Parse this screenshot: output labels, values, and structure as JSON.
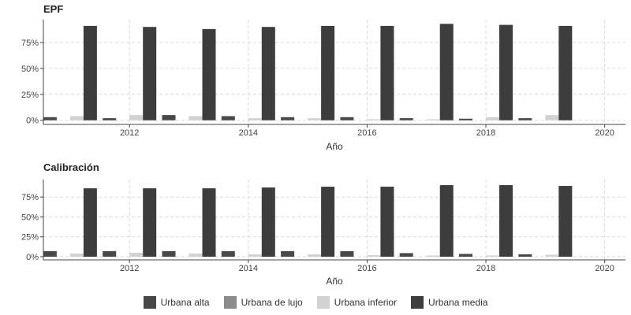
{
  "colors": {
    "Urbana alta": "#484848",
    "Urbana de lujo": "#8c8c8c",
    "Urbana inferior": "#d2d2d2",
    "Urbana media": "#3d3d3d"
  },
  "legend": {
    "items": [
      "Urbana alta",
      "Urbana de lujo",
      "Urbana inferior",
      "Urbana media"
    ],
    "placement": "bottom"
  },
  "chart_data": [
    {
      "type": "bar",
      "title": "EPF",
      "xlabel": "Año",
      "ylabel": "",
      "x": [
        2011,
        2012,
        2013,
        2014,
        2015,
        2016,
        2017,
        2018,
        2019,
        2020
      ],
      "xticks": [
        "2012",
        "2014",
        "2016",
        "2018",
        "2020"
      ],
      "xtick_values": [
        2012,
        2014,
        2016,
        2018,
        2020
      ],
      "yticks": [
        "0%",
        "25%",
        "50%",
        "75%"
      ],
      "ytick_values": [
        0,
        25,
        50,
        75
      ],
      "ylim": [
        -4,
        97
      ],
      "xlim": [
        2010.55,
        2020.35
      ],
      "grid": true,
      "series": [
        {
          "name": "Urbana alta",
          "values": [
            3,
            2,
            5,
            4,
            3,
            3,
            2,
            1.5,
            2,
            0
          ]
        },
        {
          "name": "Urbana de lujo",
          "values": [
            0,
            0,
            0,
            0,
            0,
            0,
            0,
            0,
            0,
            0
          ]
        },
        {
          "name": "Urbana inferior",
          "values": [
            4,
            5,
            4,
            2,
            2,
            1,
            1,
            3,
            5,
            0
          ]
        },
        {
          "name": "Urbana media",
          "values": [
            91,
            90,
            88,
            90,
            91,
            91,
            93,
            92,
            91,
            0
          ]
        }
      ]
    },
    {
      "type": "bar",
      "title": "Calibración",
      "xlabel": "Año",
      "ylabel": "",
      "x": [
        2011,
        2012,
        2013,
        2014,
        2015,
        2016,
        2017,
        2018,
        2019,
        2020
      ],
      "xticks": [
        "2012",
        "2014",
        "2016",
        "2018",
        "2020"
      ],
      "xtick_values": [
        2012,
        2014,
        2016,
        2018,
        2020
      ],
      "yticks": [
        "0%",
        "25%",
        "50%",
        "75%"
      ],
      "ytick_values": [
        0,
        25,
        50,
        75
      ],
      "ylim": [
        -4,
        97
      ],
      "xlim": [
        2010.55,
        2020.35
      ],
      "grid": true,
      "series": [
        {
          "name": "Urbana alta",
          "values": [
            7,
            7,
            7,
            7,
            7,
            7,
            4.5,
            3.5,
            3,
            0
          ]
        },
        {
          "name": "Urbana de lujo",
          "values": [
            0,
            0,
            0,
            0,
            0,
            0,
            0,
            0,
            0,
            0
          ]
        },
        {
          "name": "Urbana inferior",
          "values": [
            4,
            5,
            4,
            3,
            3,
            2,
            1.5,
            1.5,
            2.5,
            0
          ]
        },
        {
          "name": "Urbana media",
          "values": [
            86,
            86,
            86,
            87,
            88,
            88,
            90,
            90,
            89,
            0
          ]
        }
      ]
    }
  ]
}
